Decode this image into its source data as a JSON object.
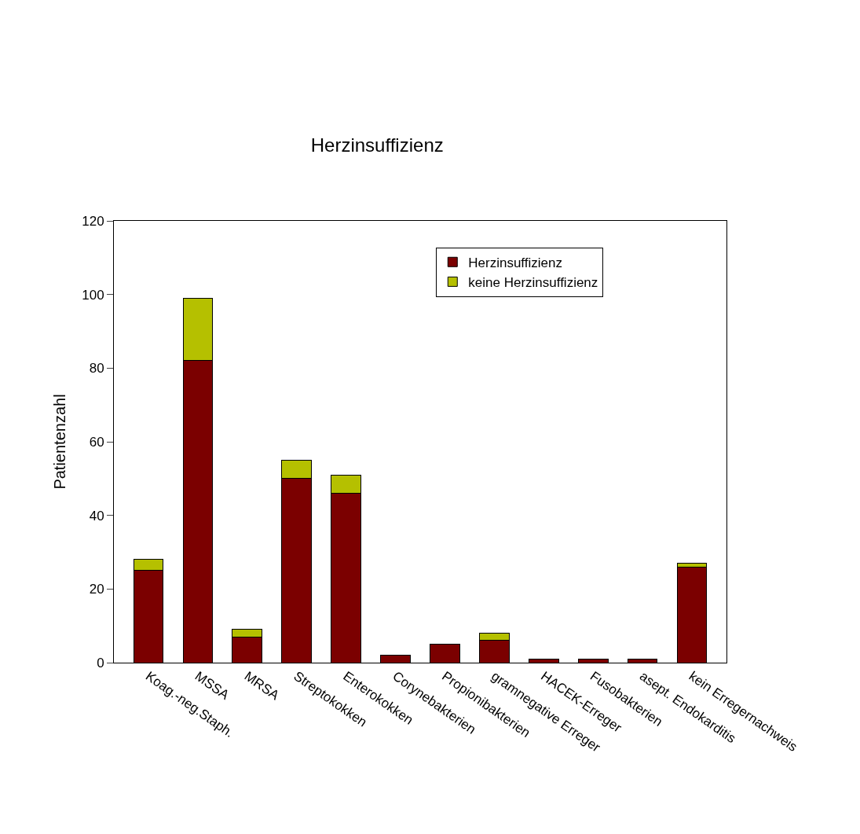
{
  "chart_data": {
    "type": "bar",
    "title": "Herzinsuffizienz",
    "ylabel": "Patientenzahl",
    "stacked": true,
    "categories": [
      "Koag.-neg.Staph.",
      "MSSA",
      "MRSA",
      "Streptokokken",
      "Enterokokken",
      "Corynebakterien",
      "Propionibakterien",
      "gramnegative Erreger",
      "HACEK-Erreger",
      "Fusobakterien",
      "asept. Endokarditis",
      "kein Erregernachweis"
    ],
    "series": [
      {
        "name": "Herzinsuffizienz",
        "color": "#7b0000",
        "values": [
          25,
          82,
          7,
          50,
          46,
          2,
          5,
          6,
          1,
          1,
          1,
          26
        ]
      },
      {
        "name": "keine Herzinsuffizienz",
        "color": "#b5c000",
        "values": [
          3,
          17,
          2,
          5,
          5,
          0,
          0,
          2,
          0,
          0,
          0,
          1
        ]
      }
    ],
    "ylim": [
      0,
      120
    ],
    "yticks": [
      0,
      20,
      40,
      60,
      80,
      100,
      120
    ],
    "legend": "top right"
  }
}
